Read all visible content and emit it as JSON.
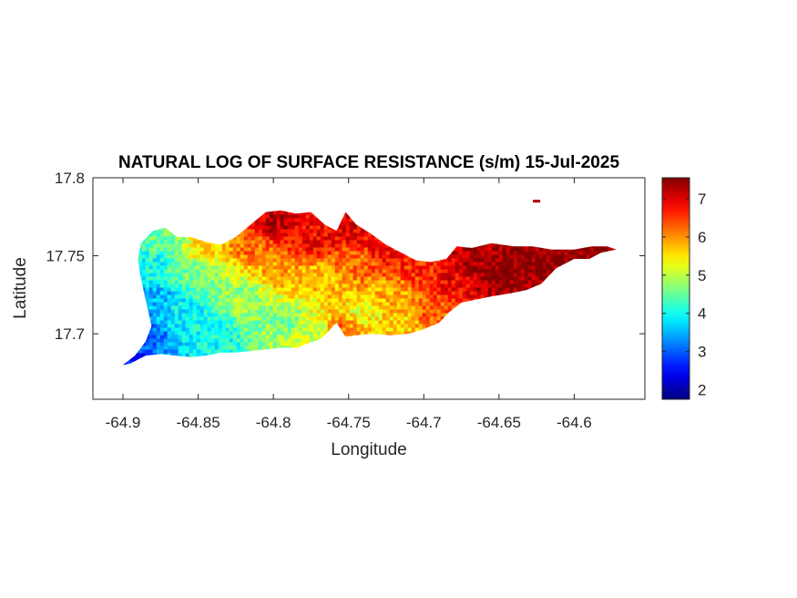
{
  "chart_data": {
    "type": "heatmap",
    "title": "NATURAL LOG OF SURFACE RESISTANCE (s/m) 15-Jul-2025",
    "xlabel": "Longitude",
    "ylabel": "Latitude",
    "xlim": [
      -64.92,
      -64.553
    ],
    "ylim": [
      17.658,
      17.8
    ],
    "xticks": [
      -64.9,
      -64.85,
      -64.8,
      -64.75,
      -64.7,
      -64.65,
      -64.6
    ],
    "xtick_labels": [
      "-64.9",
      "-64.85",
      "-64.8",
      "-64.75",
      "-64.7",
      "-64.65",
      "-64.6"
    ],
    "yticks": [
      17.7,
      17.75,
      17.8
    ],
    "ytick_labels": [
      "17.7",
      "17.75",
      "17.8"
    ],
    "colorbar": {
      "colormap": "jet",
      "range": [
        1.75,
        7.55
      ],
      "ticks": [
        2,
        3,
        4,
        5,
        6,
        7
      ],
      "tick_labels": [
        "2",
        "3",
        "4",
        "5",
        "6",
        "7"
      ]
    },
    "colormap_colors": [
      "#00008F",
      "#0000FF",
      "#00FFFF",
      "#FFFF00",
      "#FF0000",
      "#800000"
    ],
    "outline": [
      [
        -64.9,
        17.68
      ],
      [
        -64.892,
        17.686
      ],
      [
        -64.885,
        17.695
      ],
      [
        -64.881,
        17.705
      ],
      [
        -64.884,
        17.718
      ],
      [
        -64.888,
        17.735
      ],
      [
        -64.89,
        17.748
      ],
      [
        -64.888,
        17.758
      ],
      [
        -64.88,
        17.766
      ],
      [
        -64.872,
        17.768
      ],
      [
        -64.864,
        17.762
      ],
      [
        -64.855,
        17.762
      ],
      [
        -64.845,
        17.759
      ],
      [
        -64.835,
        17.757
      ],
      [
        -64.825,
        17.762
      ],
      [
        -64.815,
        17.77
      ],
      [
        -64.805,
        17.778
      ],
      [
        -64.795,
        17.779
      ],
      [
        -64.785,
        17.777
      ],
      [
        -64.775,
        17.778
      ],
      [
        -64.766,
        17.77
      ],
      [
        -64.758,
        17.766
      ],
      [
        -64.752,
        17.778
      ],
      [
        -64.745,
        17.77
      ],
      [
        -64.735,
        17.764
      ],
      [
        -64.725,
        17.757
      ],
      [
        -64.715,
        17.752
      ],
      [
        -64.705,
        17.747
      ],
      [
        -64.695,
        17.746
      ],
      [
        -64.685,
        17.748
      ],
      [
        -64.678,
        17.756
      ],
      [
        -64.668,
        17.755
      ],
      [
        -64.655,
        17.758
      ],
      [
        -64.64,
        17.756
      ],
      [
        -64.628,
        17.756
      ],
      [
        -64.615,
        17.754
      ],
      [
        -64.6,
        17.754
      ],
      [
        -64.588,
        17.756
      ],
      [
        -64.578,
        17.756
      ],
      [
        -64.572,
        17.754
      ],
      [
        -64.582,
        17.752
      ],
      [
        -64.59,
        17.748
      ],
      [
        -64.6,
        17.748
      ],
      [
        -64.612,
        17.742
      ],
      [
        -64.622,
        17.732
      ],
      [
        -64.632,
        17.728
      ],
      [
        -64.642,
        17.726
      ],
      [
        -64.655,
        17.724
      ],
      [
        -64.665,
        17.722
      ],
      [
        -64.675,
        17.72
      ],
      [
        -64.683,
        17.714
      ],
      [
        -64.69,
        17.707
      ],
      [
        -64.7,
        17.703
      ],
      [
        -64.71,
        17.7
      ],
      [
        -64.722,
        17.699
      ],
      [
        -64.735,
        17.7
      ],
      [
        -64.745,
        17.699
      ],
      [
        -64.752,
        17.698
      ],
      [
        -64.758,
        17.707
      ],
      [
        -64.766,
        17.699
      ],
      [
        -64.77,
        17.696
      ],
      [
        -64.777,
        17.694
      ],
      [
        -64.784,
        17.691
      ],
      [
        -64.795,
        17.691
      ],
      [
        -64.805,
        17.69
      ],
      [
        -64.815,
        17.689
      ],
      [
        -64.825,
        17.688
      ],
      [
        -64.835,
        17.688
      ],
      [
        -64.845,
        17.686
      ],
      [
        -64.855,
        17.685
      ],
      [
        -64.865,
        17.686
      ],
      [
        -64.875,
        17.687
      ],
      [
        -64.885,
        17.686
      ],
      [
        -64.895,
        17.681
      ]
    ],
    "islets": [
      {
        "lon": -64.625,
        "lat": 17.785,
        "value": 7.3
      }
    ],
    "value_anchors": [
      {
        "lon": -64.898,
        "lat": 17.682,
        "value": 2.5
      },
      {
        "lon": -64.885,
        "lat": 17.7,
        "value": 3.0
      },
      {
        "lon": -64.878,
        "lat": 17.722,
        "value": 3.5
      },
      {
        "lon": -64.882,
        "lat": 17.745,
        "value": 4.0
      },
      {
        "lon": -64.873,
        "lat": 17.76,
        "value": 4.5
      },
      {
        "lon": -64.86,
        "lat": 17.712,
        "value": 3.9
      },
      {
        "lon": -64.85,
        "lat": 17.74,
        "value": 4.6
      },
      {
        "lon": -64.845,
        "lat": 17.755,
        "value": 5.6
      },
      {
        "lon": -64.84,
        "lat": 17.697,
        "value": 4.0
      },
      {
        "lon": -64.82,
        "lat": 17.725,
        "value": 4.8
      },
      {
        "lon": -64.815,
        "lat": 17.755,
        "value": 6.2
      },
      {
        "lon": -64.8,
        "lat": 17.77,
        "value": 7.2
      },
      {
        "lon": -64.795,
        "lat": 17.74,
        "value": 5.9
      },
      {
        "lon": -64.795,
        "lat": 17.708,
        "value": 4.6
      },
      {
        "lon": -64.775,
        "lat": 17.76,
        "value": 6.9
      },
      {
        "lon": -64.77,
        "lat": 17.735,
        "value": 5.7
      },
      {
        "lon": -64.77,
        "lat": 17.703,
        "value": 5.0
      },
      {
        "lon": -64.757,
        "lat": 17.704,
        "value": 6.2
      },
      {
        "lon": -64.75,
        "lat": 17.768,
        "value": 7.0
      },
      {
        "lon": -64.745,
        "lat": 17.745,
        "value": 6.2
      },
      {
        "lon": -64.74,
        "lat": 17.715,
        "value": 5.3
      },
      {
        "lon": -64.725,
        "lat": 17.752,
        "value": 6.8
      },
      {
        "lon": -64.72,
        "lat": 17.725,
        "value": 5.8
      },
      {
        "lon": -64.715,
        "lat": 17.705,
        "value": 5.6
      },
      {
        "lon": -64.7,
        "lat": 17.74,
        "value": 6.6
      },
      {
        "lon": -64.695,
        "lat": 17.712,
        "value": 6.3
      },
      {
        "lon": -64.68,
        "lat": 17.735,
        "value": 6.9
      },
      {
        "lon": -64.665,
        "lat": 17.748,
        "value": 7.3
      },
      {
        "lon": -64.65,
        "lat": 17.738,
        "value": 7.5
      },
      {
        "lon": -64.635,
        "lat": 17.745,
        "value": 7.5
      },
      {
        "lon": -64.61,
        "lat": 17.75,
        "value": 7.5
      },
      {
        "lon": -64.585,
        "lat": 17.753,
        "value": 7.5
      }
    ],
    "noise_amplitude": 0.45
  }
}
